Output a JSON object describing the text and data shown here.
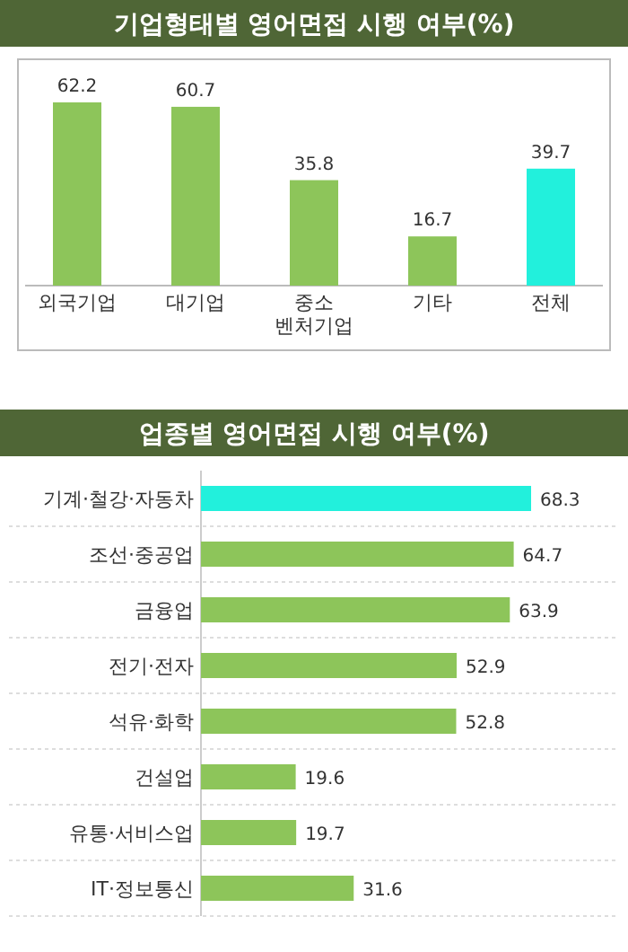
{
  "chart_data": [
    {
      "type": "bar",
      "title": "기업형태별 영어면접 시행 여부(%)",
      "categories": [
        "외국기업",
        "대기업",
        "중소\n벤처기업",
        "기타",
        "전체"
      ],
      "values": [
        62.2,
        60.7,
        35.8,
        16.7,
        39.7
      ],
      "colors": [
        "#8dc55a",
        "#8dc55a",
        "#8dc55a",
        "#8dc55a",
        "#22f0dc"
      ],
      "data_labels": true
    },
    {
      "type": "bar",
      "orientation": "horizontal",
      "title": "업종별 영어면접 시행 여부(%)",
      "categories": [
        "기계·철강·자동차",
        "조선·중공업",
        "금융업",
        "전기·전자",
        "석유·화학",
        "건설업",
        "유통·서비스업",
        "IT·정보통신"
      ],
      "values": [
        68.3,
        64.7,
        63.9,
        52.9,
        52.8,
        19.6,
        19.7,
        31.6
      ],
      "colors": [
        "#22f0dc",
        "#8dc55a",
        "#8dc55a",
        "#8dc55a",
        "#8dc55a",
        "#8dc55a",
        "#8dc55a",
        "#8dc55a"
      ],
      "data_labels": true
    }
  ]
}
